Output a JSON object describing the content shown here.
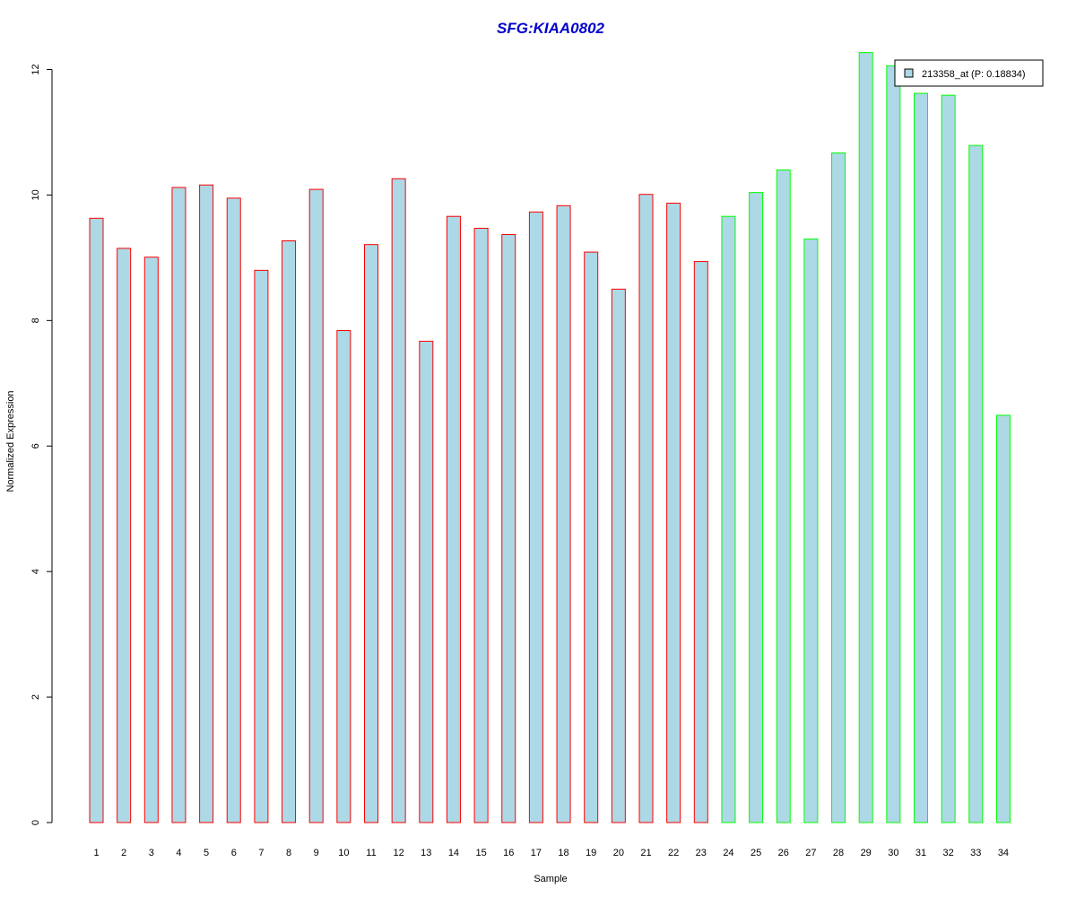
{
  "chart_data": {
    "type": "bar",
    "title": "SFG:KIAA0802",
    "xlabel": "Sample",
    "ylabel": "Normalized Expression",
    "ylim": [
      0,
      12
    ],
    "yticks": [
      "0",
      "2",
      "4",
      "6",
      "8",
      "10",
      "12"
    ],
    "categories": [
      "1",
      "2",
      "3",
      "4",
      "5",
      "6",
      "7",
      "8",
      "9",
      "10",
      "11",
      "12",
      "13",
      "14",
      "15",
      "16",
      "17",
      "18",
      "19",
      "20",
      "21",
      "22",
      "23",
      "24",
      "25",
      "26",
      "27",
      "28",
      "29",
      "30",
      "31",
      "32",
      "33",
      "34"
    ],
    "series": [
      {
        "name": "213358_at (P: 0.18834)",
        "values": [
          9.63,
          9.15,
          9.01,
          10.12,
          10.16,
          9.95,
          8.8,
          9.27,
          10.09,
          7.84,
          9.21,
          10.26,
          7.67,
          9.66,
          9.47,
          9.37,
          9.73,
          9.83,
          9.09,
          8.5,
          10.01,
          9.87,
          8.94,
          9.66,
          10.04,
          10.4,
          9.3,
          10.67,
          12.27,
          12.06,
          11.62,
          11.59,
          10.79,
          6.49
        ]
      }
    ],
    "groups": [
      1,
      1,
      1,
      1,
      1,
      1,
      1,
      1,
      1,
      1,
      1,
      1,
      1,
      1,
      1,
      1,
      1,
      1,
      1,
      1,
      1,
      1,
      1,
      2,
      2,
      2,
      2,
      2,
      2,
      2,
      2,
      2,
      2,
      2
    ],
    "colors": {
      "bar_fill": "#add8e6",
      "group_1_border": "#ff0000",
      "group_2_border": "#00ff00",
      "title": "#0000cd"
    },
    "legend_position": "top-right",
    "grid": false
  }
}
